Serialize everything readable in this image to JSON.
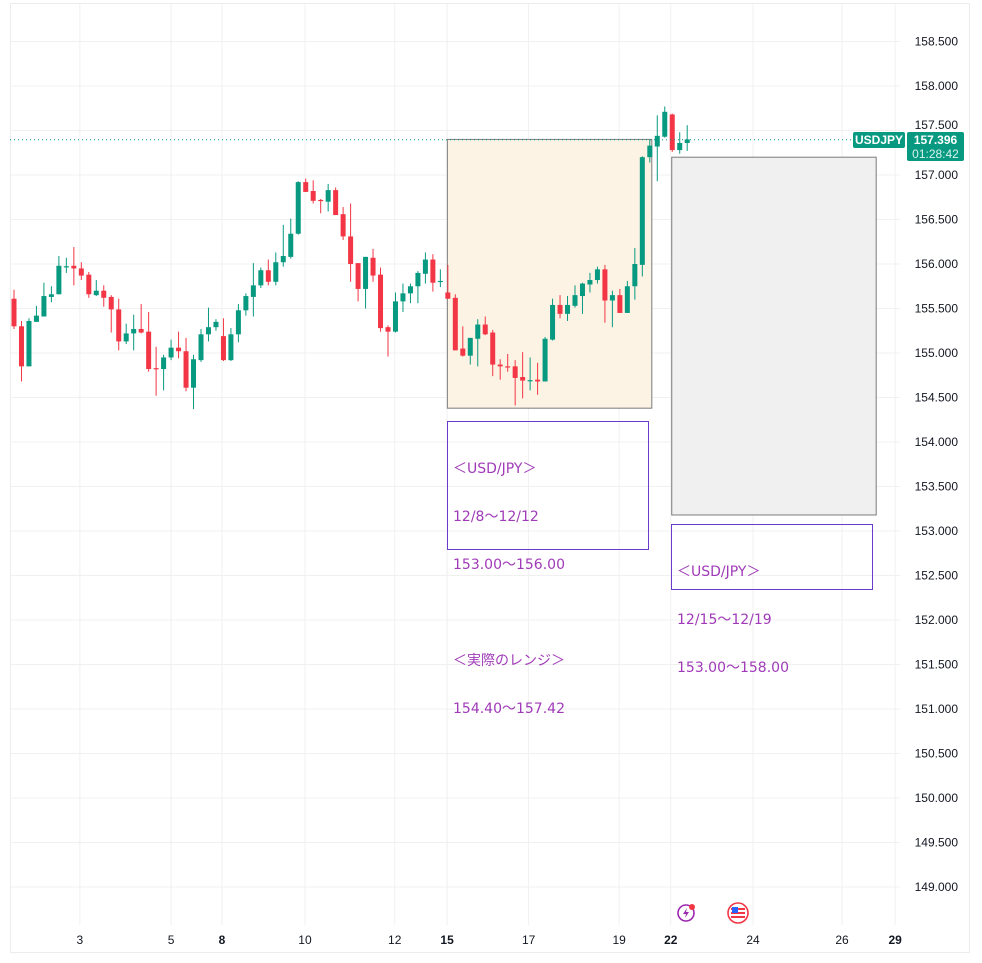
{
  "chart_data": {
    "type": "candlestick",
    "symbol": "USDJPY",
    "last_price": "157.396",
    "countdown": "01:28:42",
    "ylim": [
      148.7,
      158.9
    ],
    "y_ticks": [
      "158.500",
      "158.000",
      "157.500",
      "157.000",
      "156.500",
      "156.000",
      "155.500",
      "155.000",
      "154.500",
      "154.000",
      "153.500",
      "153.000",
      "152.500",
      "152.000",
      "151.500",
      "151.000",
      "150.500",
      "150.000",
      "149.500",
      "149.000"
    ],
    "x_ticks": [
      {
        "label": "3",
        "index": 8.8,
        "bold": false
      },
      {
        "label": "5",
        "index": 21,
        "bold": false
      },
      {
        "label": "8",
        "index": 27.8,
        "bold": true
      },
      {
        "label": "10",
        "index": 38.9,
        "bold": false
      },
      {
        "label": "12",
        "index": 50.9,
        "bold": false
      },
      {
        "label": "15",
        "index": 57.9,
        "bold": true
      },
      {
        "label": "17",
        "index": 68.8,
        "bold": false
      },
      {
        "label": "19",
        "index": 80.9,
        "bold": false
      },
      {
        "label": "22",
        "index": 87.8,
        "bold": true
      },
      {
        "label": "24",
        "index": 98.8,
        "bold": false
      },
      {
        "label": "26",
        "index": 110.7,
        "bold": false
      },
      {
        "label": "29",
        "index": 117.8,
        "bold": true
      }
    ],
    "colors": {
      "up": "#089981",
      "down": "#f23645",
      "grid": "#f0f0f0"
    },
    "candles_ohlc": [
      [
        155.61,
        155.71,
        155.27,
        155.3
      ],
      [
        155.3,
        155.36,
        154.68,
        154.85
      ],
      [
        154.85,
        155.39,
        154.85,
        155.36
      ],
      [
        155.35,
        155.53,
        155.35,
        155.42
      ],
      [
        155.41,
        155.79,
        155.41,
        155.64
      ],
      [
        155.63,
        155.75,
        155.57,
        155.66
      ],
      [
        155.66,
        156.09,
        155.66,
        155.98
      ],
      [
        155.97,
        156.07,
        155.9,
        155.975
      ],
      [
        155.98,
        156.19,
        155.76,
        155.95
      ],
      [
        155.95,
        156.02,
        155.82,
        155.87
      ],
      [
        155.88,
        155.91,
        155.62,
        155.66
      ],
      [
        155.65,
        155.82,
        155.64,
        155.7
      ],
      [
        155.7,
        155.76,
        155.52,
        155.62
      ],
      [
        155.63,
        155.65,
        155.23,
        155.49
      ],
      [
        155.49,
        155.61,
        155.03,
        155.13
      ],
      [
        155.13,
        155.33,
        155.1,
        155.22
      ],
      [
        155.22,
        155.43,
        155.03,
        155.27
      ],
      [
        155.27,
        155.55,
        155.22,
        155.23
      ],
      [
        155.24,
        155.46,
        154.79,
        154.82
      ],
      [
        154.83,
        155.07,
        154.52,
        154.825
      ],
      [
        154.82,
        154.98,
        154.58,
        154.95
      ],
      [
        154.95,
        155.15,
        154.92,
        155.06
      ],
      [
        155.06,
        155.24,
        154.94,
        155.02
      ],
      [
        155.02,
        155.17,
        154.57,
        154.61
      ],
      [
        154.61,
        154.98,
        154.37,
        154.93
      ],
      [
        154.92,
        155.27,
        154.9,
        155.21
      ],
      [
        155.21,
        155.51,
        155.13,
        155.29
      ],
      [
        155.29,
        155.38,
        155.25,
        155.35
      ],
      [
        155.19,
        155.39,
        154.91,
        154.92
      ],
      [
        154.92,
        155.28,
        154.91,
        155.21
      ],
      [
        155.21,
        155.55,
        155.12,
        155.48
      ],
      [
        155.48,
        155.67,
        155.42,
        155.64
      ],
      [
        155.63,
        156.01,
        155.41,
        155.76
      ],
      [
        155.76,
        155.96,
        155.73,
        155.93
      ],
      [
        155.93,
        156.05,
        155.76,
        155.8
      ],
      [
        155.8,
        156.13,
        155.76,
        156.02
      ],
      [
        156.02,
        156.44,
        155.97,
        156.09
      ],
      [
        156.08,
        156.51,
        156.06,
        156.34
      ],
      [
        156.34,
        156.93,
        156.33,
        156.92
      ],
      [
        156.92,
        156.96,
        156.81,
        156.81
      ],
      [
        156.82,
        156.94,
        156.68,
        156.71
      ],
      [
        156.72,
        156.73,
        156.57,
        156.715
      ],
      [
        156.7,
        156.9,
        156.59,
        156.83
      ],
      [
        156.83,
        156.86,
        156.55,
        156.55
      ],
      [
        156.56,
        156.64,
        156.27,
        156.31
      ],
      [
        156.31,
        156.68,
        155.8,
        156.0
      ],
      [
        156.01,
        156.01,
        155.58,
        155.72
      ],
      [
        155.72,
        156.08,
        155.5,
        156.08
      ],
      [
        156.07,
        156.17,
        155.8,
        155.87
      ],
      [
        155.88,
        155.96,
        155.24,
        155.28
      ],
      [
        155.29,
        155.31,
        154.96,
        155.24
      ],
      [
        155.24,
        155.68,
        155.23,
        155.58
      ],
      [
        155.58,
        155.78,
        155.46,
        155.67
      ],
      [
        155.67,
        155.78,
        155.56,
        155.75
      ],
      [
        155.75,
        155.92,
        155.56,
        155.9
      ],
      [
        155.89,
        156.13,
        155.78,
        156.05
      ],
      [
        156.05,
        156.11,
        155.69,
        155.79
      ],
      [
        155.8,
        155.94,
        155.74,
        155.81
      ],
      [
        155.68,
        155.99,
        155.61,
        155.61
      ],
      [
        155.62,
        155.66,
        155.03,
        155.03
      ],
      [
        155.05,
        155.3,
        154.96,
        154.97
      ],
      [
        154.97,
        155.17,
        154.87,
        155.17
      ],
      [
        155.16,
        155.38,
        154.85,
        155.32
      ],
      [
        155.32,
        155.41,
        155.2,
        155.21
      ],
      [
        155.23,
        155.26,
        154.74,
        154.87
      ],
      [
        154.87,
        154.93,
        154.7,
        154.85
      ],
      [
        154.85,
        154.99,
        154.79,
        154.845
      ],
      [
        154.85,
        154.92,
        154.41,
        154.72
      ],
      [
        154.73,
        155.01,
        154.49,
        154.69
      ],
      [
        154.69,
        154.95,
        154.58,
        154.695
      ],
      [
        154.7,
        154.89,
        154.53,
        154.68
      ],
      [
        154.68,
        155.18,
        154.68,
        155.16
      ],
      [
        155.15,
        155.61,
        155.14,
        155.54
      ],
      [
        155.54,
        155.65,
        155.39,
        155.44
      ],
      [
        155.44,
        155.64,
        155.36,
        155.54
      ],
      [
        155.53,
        155.76,
        155.51,
        155.65
      ],
      [
        155.64,
        155.79,
        155.44,
        155.78
      ],
      [
        155.77,
        155.9,
        155.68,
        155.82
      ],
      [
        155.82,
        155.97,
        155.78,
        155.94
      ],
      [
        155.94,
        155.99,
        155.34,
        155.59
      ],
      [
        155.59,
        155.7,
        155.29,
        155.65
      ],
      [
        155.65,
        155.72,
        155.45,
        155.45
      ],
      [
        155.45,
        155.81,
        155.45,
        155.75
      ],
      [
        155.75,
        156.18,
        155.6,
        156.0
      ],
      [
        155.99,
        157.21,
        155.86,
        157.2
      ],
      [
        157.2,
        157.4,
        157.14,
        157.33
      ],
      [
        157.32,
        157.67,
        156.93,
        157.44
      ],
      [
        157.43,
        157.77,
        157.42,
        157.71
      ],
      [
        157.68,
        157.69,
        157.26,
        157.28
      ],
      [
        157.28,
        157.48,
        157.24,
        157.36
      ],
      [
        157.36,
        157.56,
        157.27,
        157.4
      ]
    ],
    "range_boxes": [
      {
        "name": "actual-range-box",
        "start_index": 58,
        "end_index": 85,
        "top": 157.4,
        "bottom": 154.38,
        "fill": "#fdf3e4"
      },
      {
        "name": "forecast-range-box",
        "start_index": 88,
        "end_index": 115,
        "top": 157.2,
        "bottom": 153.18,
        "fill": "#f0f0f0"
      }
    ]
  },
  "annotations": {
    "week1": {
      "line1": "＜USD/JPY＞",
      "line2": "12/8～12/12",
      "line3": "153.00～156.00",
      "line4": "＜実際のレンジ＞",
      "line5": "154.40～157.42"
    },
    "week2": {
      "line1": "＜USD/JPY＞",
      "line2": "12/15～12/19",
      "line3": "153.00～158.00"
    }
  },
  "icons": [
    "lightning-event-icon",
    "us-flag-icon"
  ]
}
